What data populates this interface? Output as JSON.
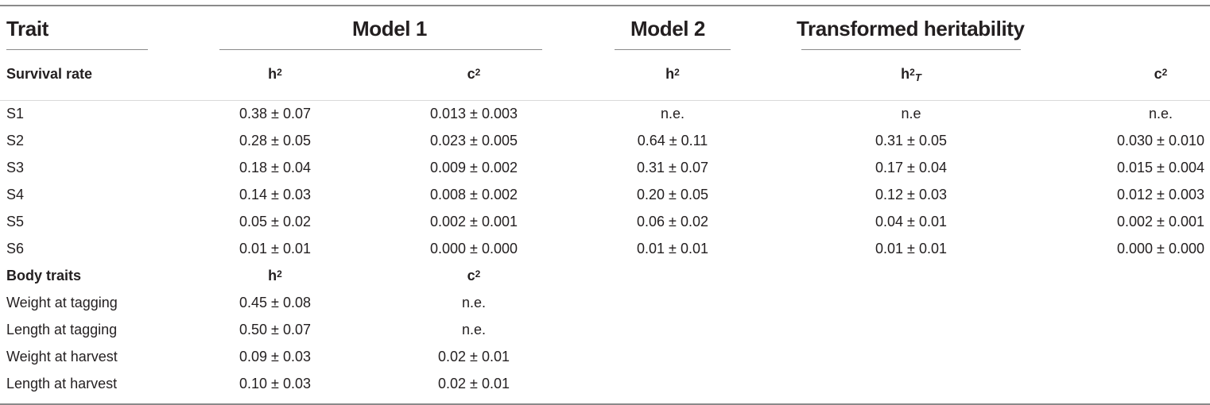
{
  "header": {
    "trait": "Trait",
    "model1": "Model 1",
    "model2": "Model 2",
    "transformed": "Transformed heritability"
  },
  "subheader": {
    "section": "Survival rate",
    "h": "h",
    "c": "c",
    "sup": "2",
    "t_sub": "T"
  },
  "survival_rows": [
    {
      "trait": "S1",
      "m1_h2": "0.38 ± 0.07",
      "m1_c2": "0.013 ± 0.003",
      "m2_h2": "n.e.",
      "t_h2": "n.e",
      "t_c2": "n.e."
    },
    {
      "trait": "S2",
      "m1_h2": "0.28 ± 0.05",
      "m1_c2": "0.023 ± 0.005",
      "m2_h2": "0.64 ± 0.11",
      "t_h2": "0.31 ± 0.05",
      "t_c2": "0.030 ± 0.010"
    },
    {
      "trait": "S3",
      "m1_h2": "0.18 ± 0.04",
      "m1_c2": "0.009 ± 0.002",
      "m2_h2": "0.31 ± 0.07",
      "t_h2": "0.17 ± 0.04",
      "t_c2": "0.015 ± 0.004"
    },
    {
      "trait": "S4",
      "m1_h2": "0.14 ± 0.03",
      "m1_c2": "0.008 ± 0.002",
      "m2_h2": "0.20 ± 0.05",
      "t_h2": "0.12 ± 0.03",
      "t_c2": "0.012 ± 0.003"
    },
    {
      "trait": "S5",
      "m1_h2": "0.05 ± 0.02",
      "m1_c2": "0.002 ± 0.001",
      "m2_h2": "0.06 ± 0.02",
      "t_h2": "0.04 ± 0.01",
      "t_c2": "0.002 ± 0.001"
    },
    {
      "trait": "S6",
      "m1_h2": "0.01 ± 0.01",
      "m1_c2": "0.000 ± 0.000",
      "m2_h2": "0.01 ± 0.01",
      "t_h2": "0.01 ± 0.01",
      "t_c2": "0.000 ± 0.000"
    }
  ],
  "body_section": {
    "label": "Body traits",
    "h": "h",
    "c": "c",
    "sup": "2"
  },
  "body_rows": [
    {
      "trait": "Weight at tagging",
      "h2": "0.45 ± 0.08",
      "c2": "n.e."
    },
    {
      "trait": "Length at tagging",
      "h2": "0.50 ± 0.07",
      "c2": "n.e."
    },
    {
      "trait": "Weight at harvest",
      "h2": "0.09 ± 0.03",
      "c2": "0.02 ± 0.01"
    },
    {
      "trait": "Length at harvest",
      "h2": "0.10 ± 0.03",
      "c2": "0.02 ± 0.01"
    }
  ]
}
